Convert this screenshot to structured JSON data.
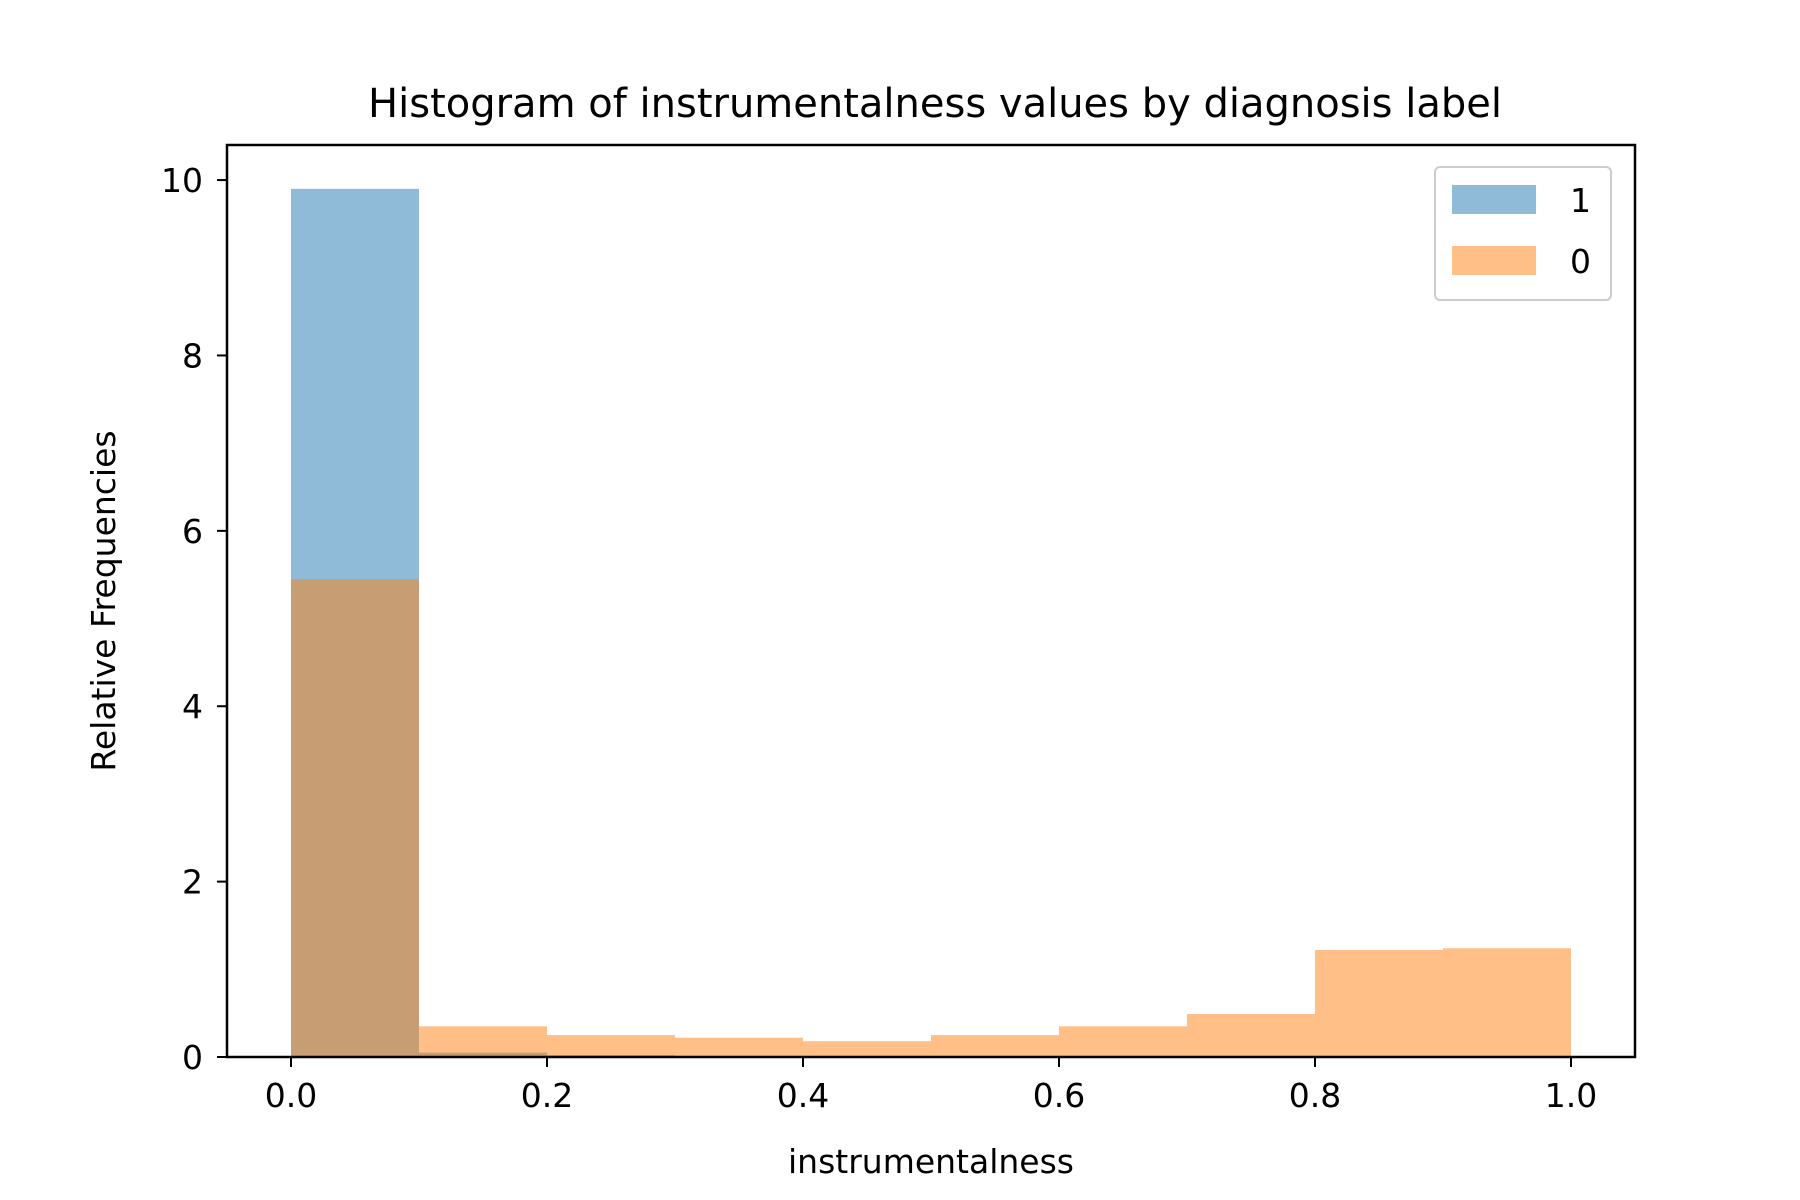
{
  "chart_data": {
    "type": "bar",
    "title": "Histogram of instrumentalness values by diagnosis label",
    "xlabel": "instrumentalness",
    "ylabel": "Relative Frequencies",
    "xlim": [
      -0.05,
      1.05
    ],
    "ylim": [
      0,
      10.4
    ],
    "xticks": [
      {
        "value": 0.0,
        "label": "0.0"
      },
      {
        "value": 0.2,
        "label": "0.2"
      },
      {
        "value": 0.4,
        "label": "0.4"
      },
      {
        "value": 0.6,
        "label": "0.6"
      },
      {
        "value": 0.8,
        "label": "0.8"
      },
      {
        "value": 1.0,
        "label": "1.0"
      }
    ],
    "yticks": [
      {
        "value": 0,
        "label": "0"
      },
      {
        "value": 2,
        "label": "2"
      },
      {
        "value": 4,
        "label": "4"
      },
      {
        "value": 6,
        "label": "6"
      },
      {
        "value": 8,
        "label": "8"
      },
      {
        "value": 10,
        "label": "10"
      }
    ],
    "bin_edges": [
      0.0,
      0.1,
      0.2,
      0.3,
      0.4,
      0.5,
      0.6,
      0.7,
      0.8,
      0.9,
      1.0
    ],
    "series": [
      {
        "name": "1",
        "color": "#1f77b4",
        "opacity": 0.5,
        "values": [
          9.9,
          0.05,
          0.02,
          0.0,
          0.0,
          0.0,
          0.0,
          0.0,
          0.0,
          0.0
        ]
      },
      {
        "name": "0",
        "color": "#ff7f0e",
        "opacity": 0.5,
        "values": [
          5.45,
          0.35,
          0.25,
          0.22,
          0.18,
          0.25,
          0.35,
          0.49,
          1.22,
          1.24
        ]
      }
    ],
    "legend": {
      "placement": "top-right"
    },
    "grid": false
  }
}
